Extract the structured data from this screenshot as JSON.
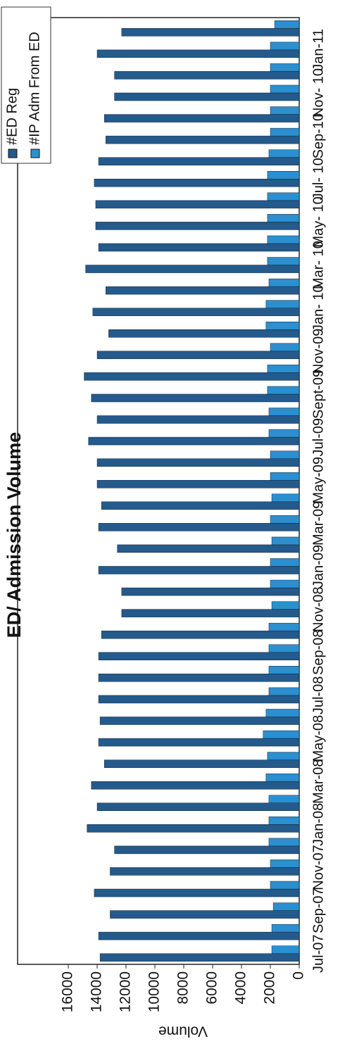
{
  "chart_data": {
    "type": "bar",
    "title": "ED/ Admission Volume",
    "y_label": "Volume",
    "categories": [
      "Jul-07",
      null,
      "Sep-07",
      null,
      "Nov-07",
      null,
      "Jan-08",
      null,
      "Mar-08",
      null,
      "May-08",
      null,
      "Jul-08",
      null,
      "Sep-08",
      null,
      "Nov-08",
      null,
      "Jan-09",
      null,
      "Mar-09",
      null,
      "May-09",
      null,
      "Jul-09",
      null,
      "Sept-09",
      null,
      "Nov-09",
      null,
      "Jan- 10",
      null,
      "Mar- 10",
      null,
      "May- 10",
      null,
      "Jul- 10",
      null,
      "Sep-10",
      null,
      "Nov- 10",
      null,
      "Jan-11",
      null
    ],
    "series": [
      {
        "name": "#ED Reg",
        "color": "#245a8c",
        "values": [
          13800,
          13900,
          13100,
          14200,
          13100,
          12800,
          14700,
          14000,
          14400,
          13500,
          13900,
          13800,
          13900,
          13900,
          13900,
          13700,
          12300,
          12300,
          13900,
          12600,
          13900,
          13700,
          14000,
          14000,
          14600,
          14000,
          14400,
          14900,
          14000,
          13200,
          14300,
          13400,
          14800,
          13900,
          14100,
          14100,
          14200,
          13900,
          13400,
          13500,
          12800,
          12800,
          14000,
          12300
        ]
      },
      {
        "name": "#IP Adm From ED",
        "color": "#2b8fd0",
        "values": [
          1900,
          1900,
          1800,
          2000,
          2000,
          2100,
          2100,
          2100,
          2300,
          2200,
          2500,
          2300,
          2100,
          2100,
          2100,
          2100,
          1900,
          2000,
          2000,
          1900,
          2000,
          1900,
          2000,
          2000,
          2100,
          2100,
          2200,
          2200,
          2000,
          2300,
          2300,
          2100,
          2200,
          2200,
          2200,
          2200,
          2200,
          2100,
          2000,
          2000,
          2000,
          2000,
          2000,
          1700
        ]
      }
    ],
    "ylim": [
      0,
      16000
    ],
    "yticks": [
      0,
      2000,
      4000,
      6000,
      8000,
      10000,
      12000,
      14000,
      16000
    ],
    "grid": false,
    "legend": "top-right"
  }
}
